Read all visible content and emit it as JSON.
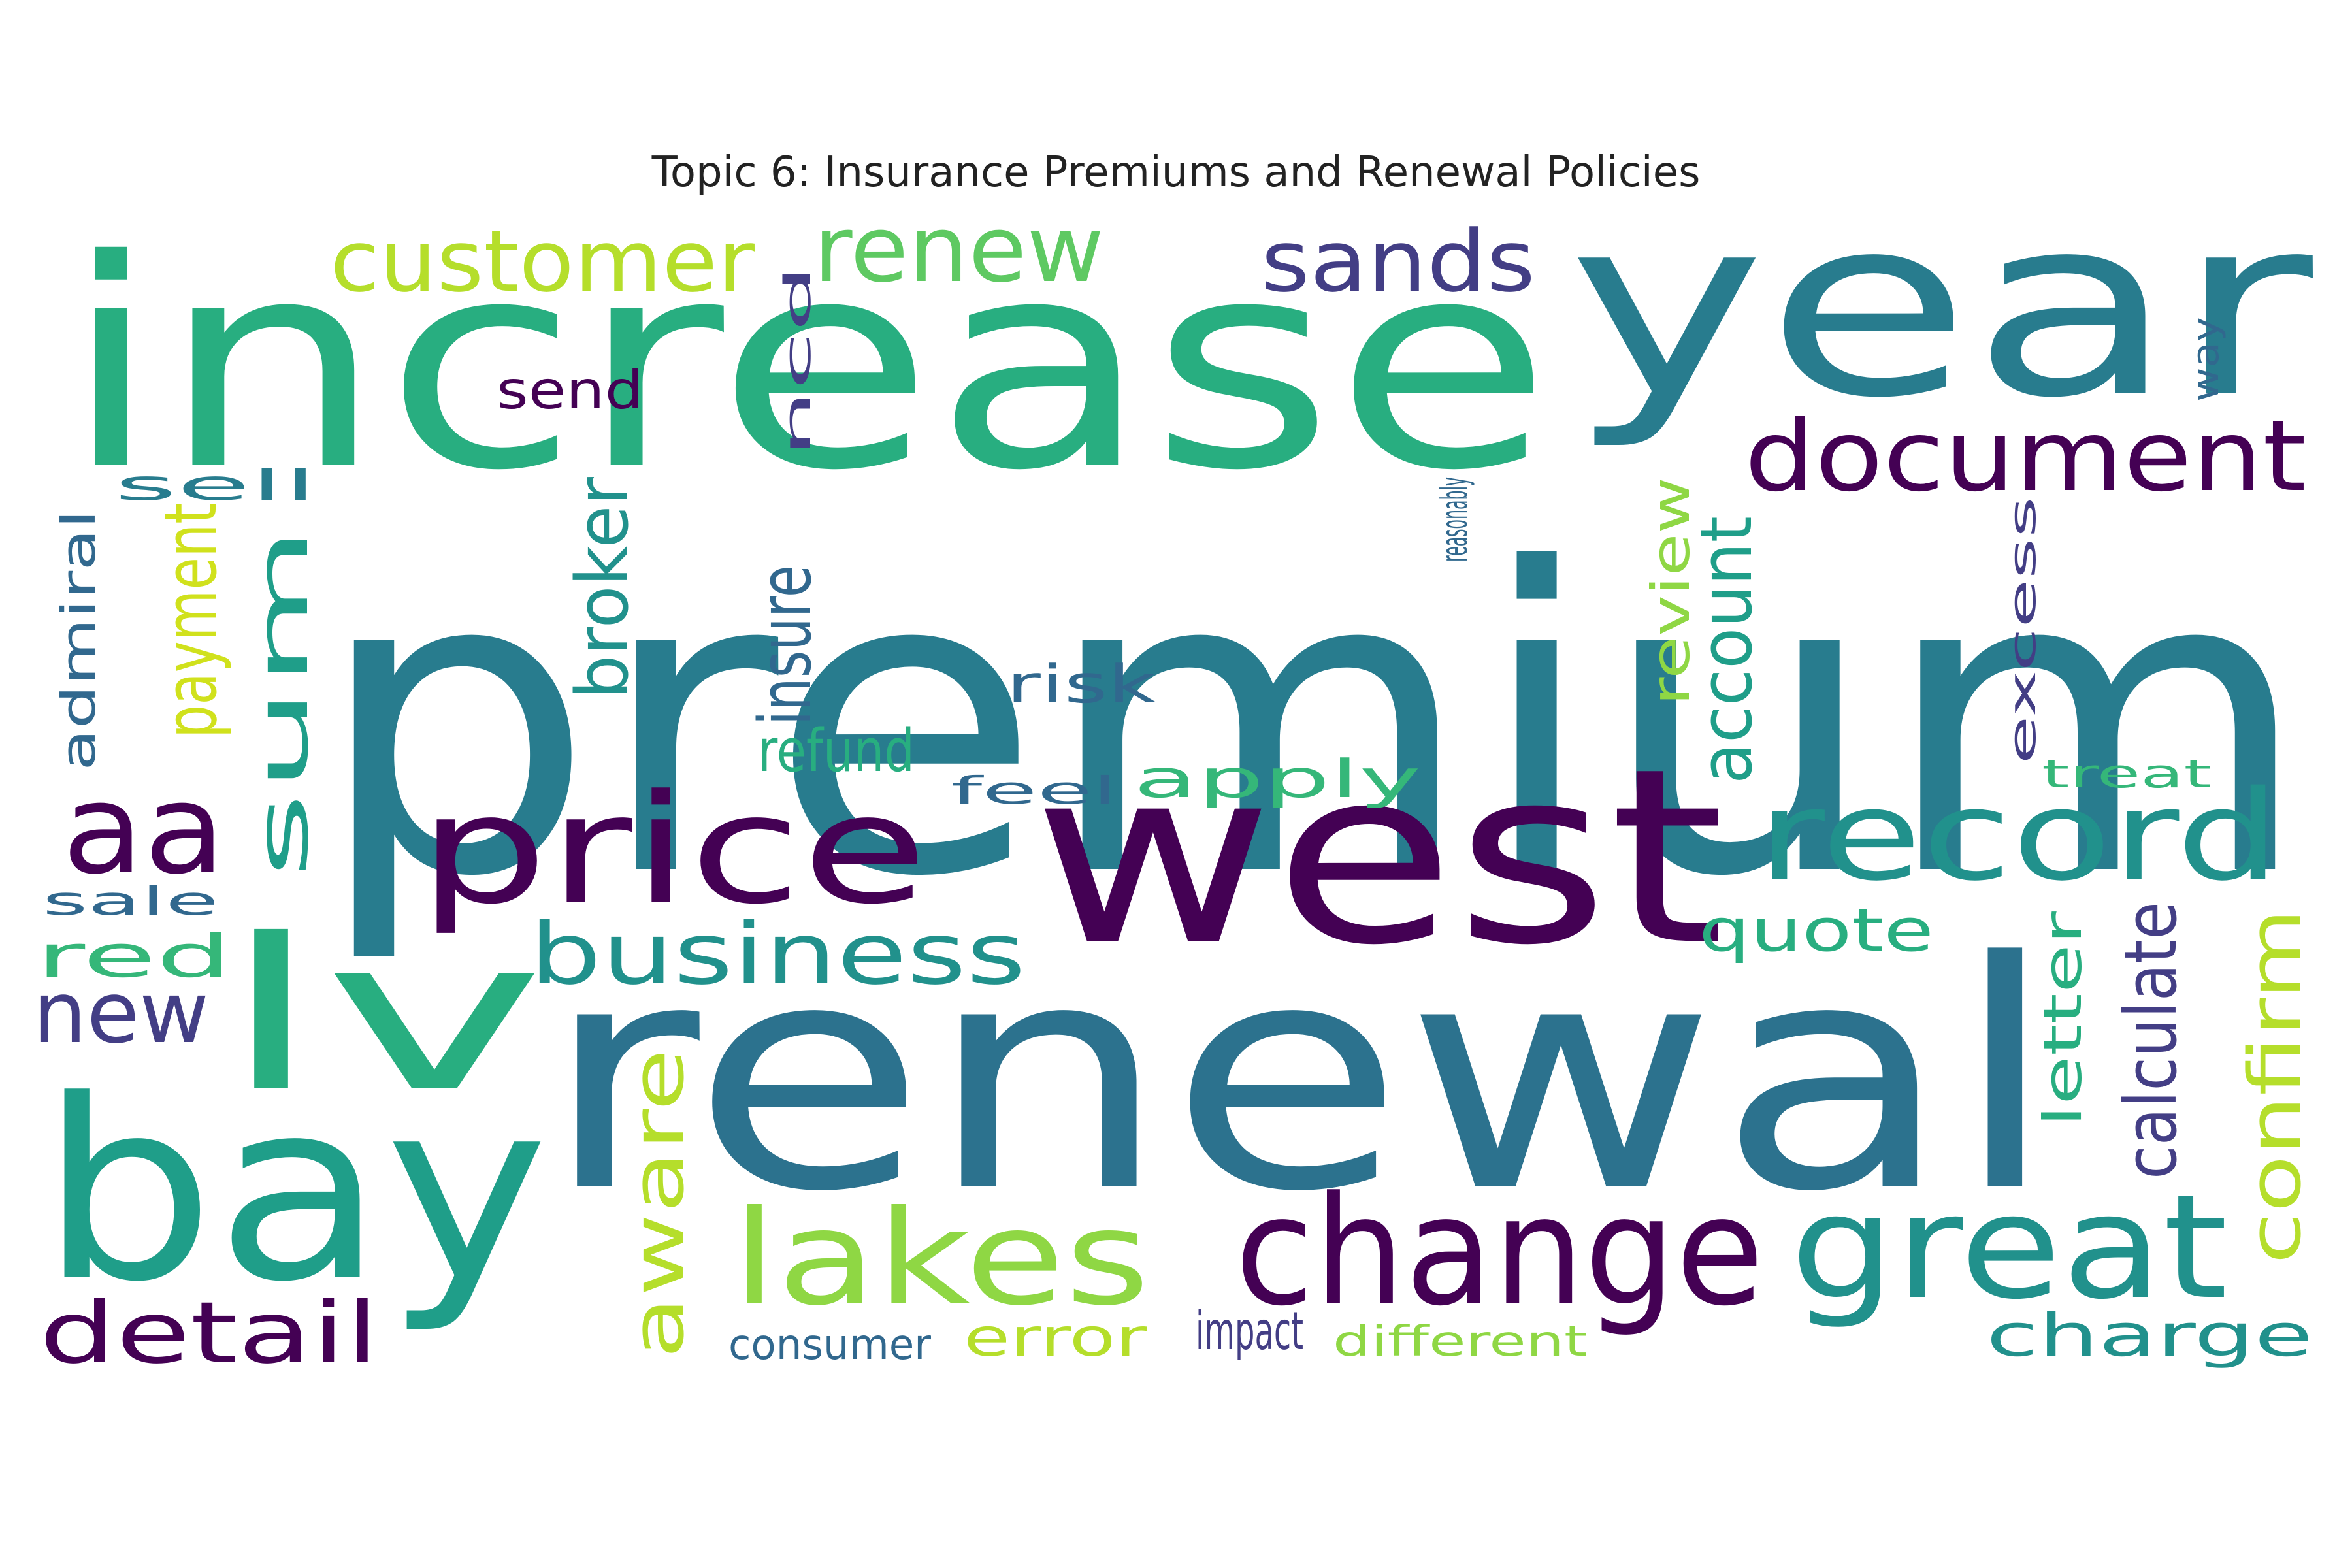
{
  "title": "Topic 6: Insurance Premiums and Renewal Policies",
  "palette": {
    "c1": "#440154",
    "c2": "#433e85",
    "c3": "#31688e",
    "c4": "#2c728e",
    "c5": "#287c8e",
    "c6": "#21918c",
    "c7": "#1f9e89",
    "c8": "#28ae80",
    "c9": "#35b779",
    "c10": "#5ec962",
    "c11": "#8fd744",
    "c12": "#b5de2b",
    "c13": "#d0e11c"
  },
  "words": [
    {
      "text": "premium",
      "color": "c5"
    },
    {
      "text": "increase",
      "color": "c8"
    },
    {
      "text": "renewal",
      "color": "c4"
    },
    {
      "text": "year",
      "color": "c5"
    },
    {
      "text": "west",
      "color": "c1"
    },
    {
      "text": "bay",
      "color": "c7"
    },
    {
      "text": "lv",
      "color": "c8"
    },
    {
      "text": "price",
      "color": "c1"
    },
    {
      "text": "change",
      "color": "c1"
    },
    {
      "text": "great",
      "color": "c6"
    },
    {
      "text": "record",
      "color": "c6"
    },
    {
      "text": "lakes",
      "color": "c11"
    },
    {
      "text": "document",
      "color": "c1"
    },
    {
      "text": "aa",
      "color": "c1"
    },
    {
      "text": "customer",
      "color": "c12"
    },
    {
      "text": "renew",
      "color": "c10"
    },
    {
      "text": "sands",
      "color": "c2"
    },
    {
      "text": "business",
      "color": "c6"
    },
    {
      "text": "detail",
      "color": "c1"
    },
    {
      "text": "new",
      "color": "c2"
    },
    {
      "text": "quote",
      "color": "c8"
    },
    {
      "text": "charge",
      "color": "c6"
    },
    {
      "text": "apply",
      "color": "c9"
    },
    {
      "text": "refund",
      "color": "c8"
    },
    {
      "text": "risk",
      "color": "c3"
    },
    {
      "text": "send",
      "color": "c1"
    },
    {
      "text": "red",
      "color": "c9"
    },
    {
      "text": "error",
      "color": "c12"
    },
    {
      "text": "impact",
      "color": "c2"
    },
    {
      "text": "different",
      "color": "c11"
    },
    {
      "text": "consumer",
      "color": "c3"
    },
    {
      "text": "sell",
      "color": "c5"
    },
    {
      "text": "sale",
      "color": "c3"
    },
    {
      "text": "feel",
      "color": "c3"
    },
    {
      "text": "treat",
      "color": "c9"
    },
    {
      "text": "broker",
      "color": "c6"
    },
    {
      "text": "insure",
      "color": "c3"
    },
    {
      "text": "aware",
      "color": "c12"
    },
    {
      "text": "sum",
      "color": "c7"
    },
    {
      "text": "payment",
      "color": "c13"
    },
    {
      "text": "calculate",
      "color": "c2"
    },
    {
      "text": "confirm",
      "color": "c12"
    },
    {
      "text": "account",
      "color": "c7"
    },
    {
      "text": "review",
      "color": "c11"
    },
    {
      "text": "letter",
      "color": "c8"
    },
    {
      "text": "admiral",
      "color": "c3"
    },
    {
      "text": "ncd",
      "color": "c2"
    },
    {
      "text": "way",
      "color": "c3"
    },
    {
      "text": "reasonably",
      "color": "c3"
    },
    {
      "text": "excess",
      "color": "c2"
    }
  ]
}
